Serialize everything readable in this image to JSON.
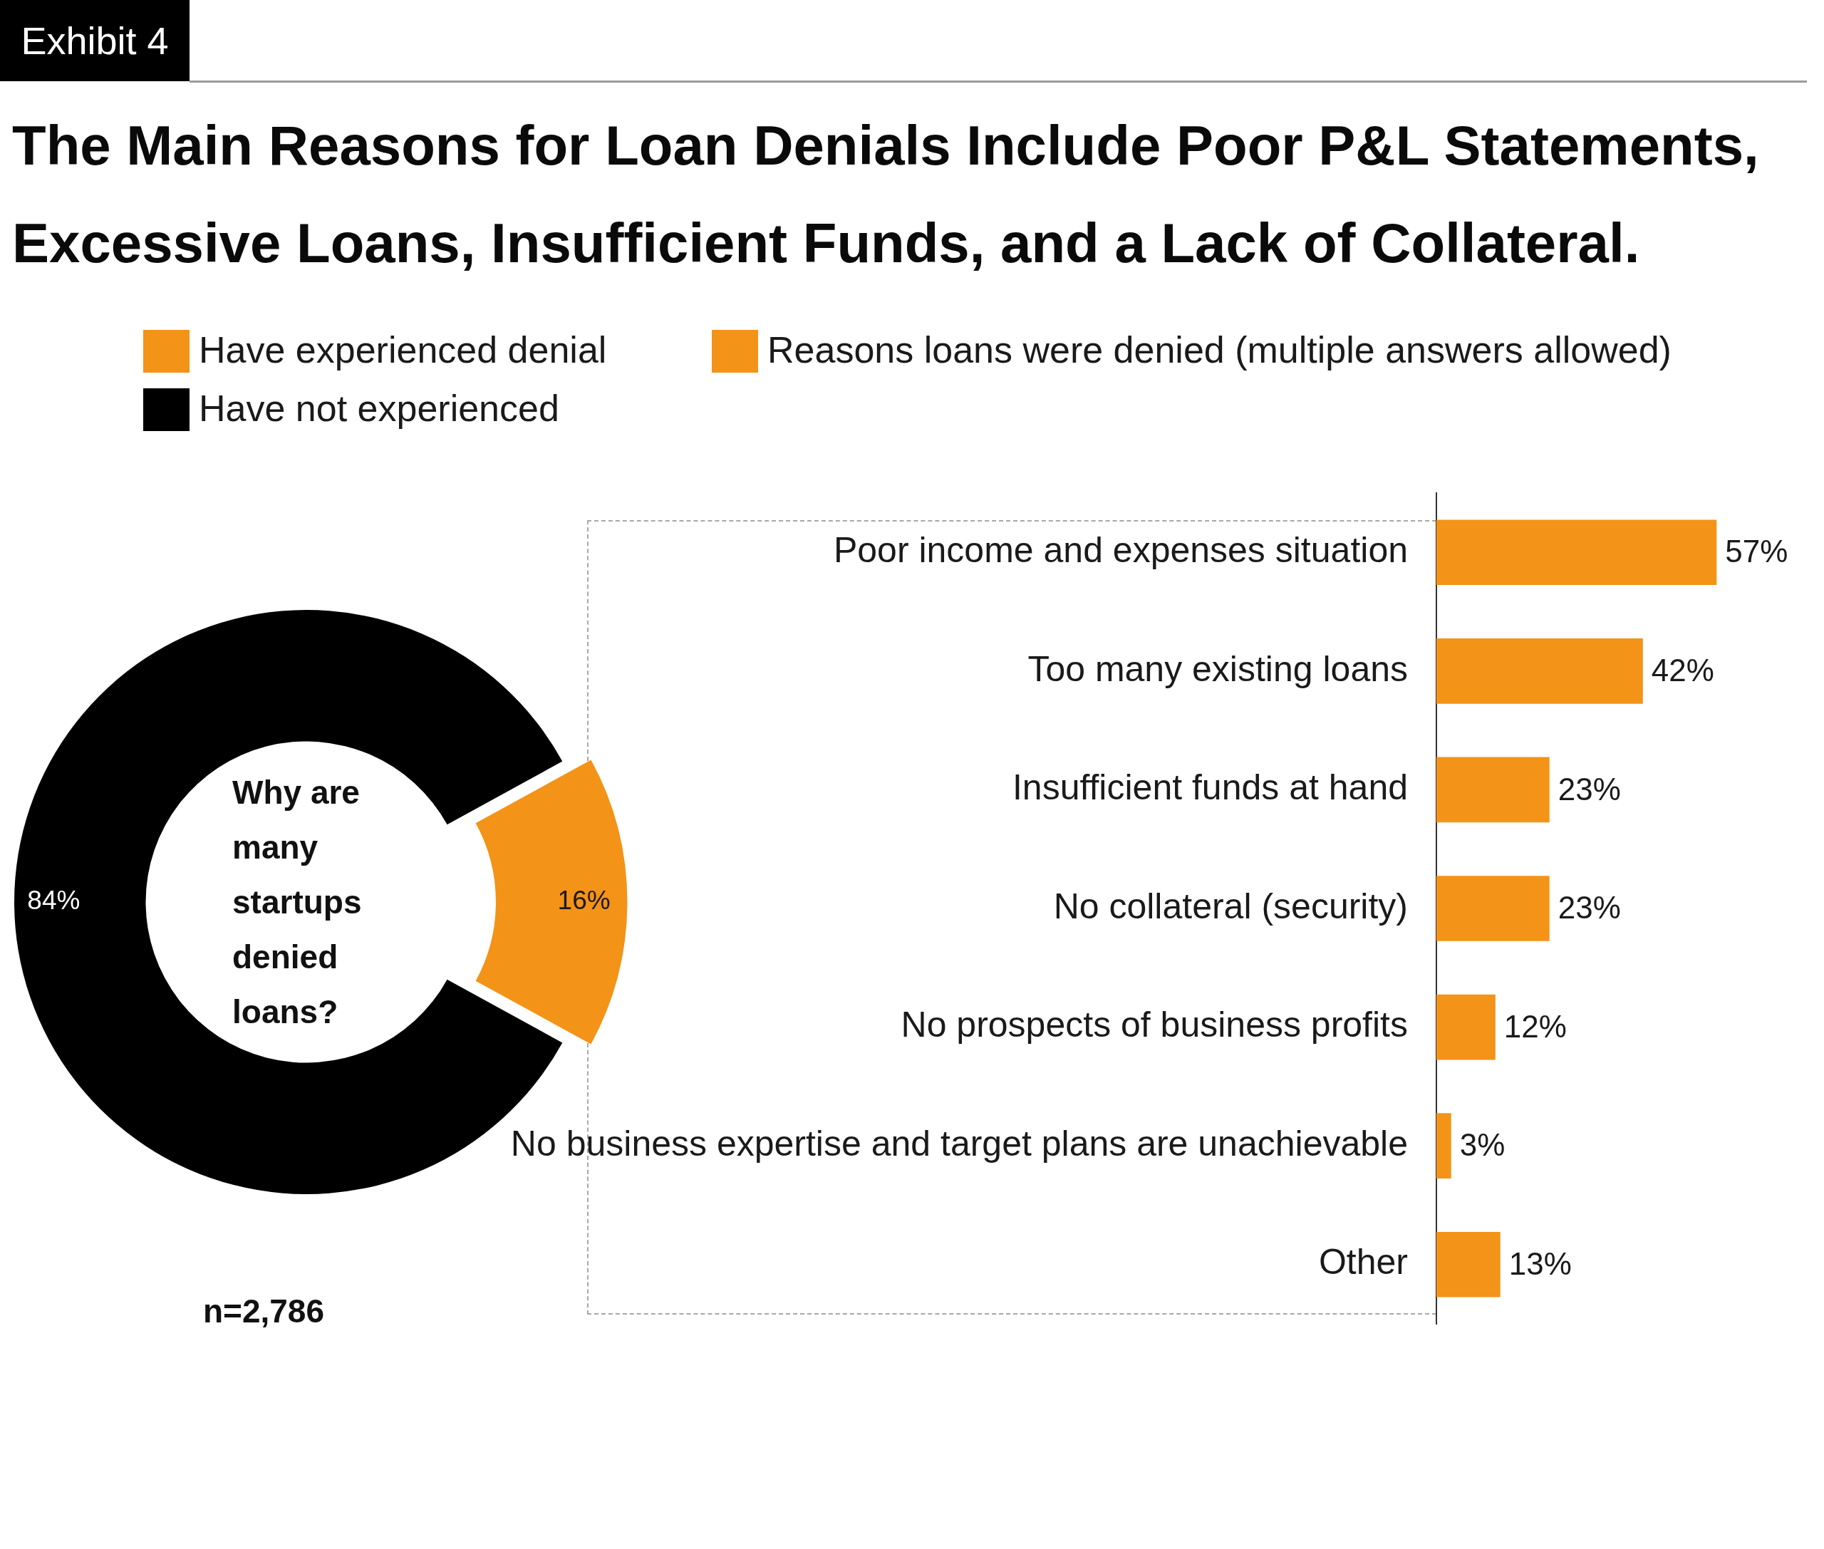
{
  "chart_data": [
    {
      "type": "donut",
      "title": "The Main Reasons for Loan Denials Include Poor P&L Statements, Excessive Loans, Insufficient Funds, and a Lack of Collateral.",
      "categories": [
        "Have experienced denial",
        "Have not experienced"
      ],
      "values": [
        16,
        84
      ],
      "colors": [
        "#f39318",
        "#000000"
      ],
      "value_labels": [
        "16%",
        "84%"
      ],
      "legend": "top",
      "annotations": [
        "Exhibit 4",
        "Why are many startups denied loans?",
        "n=2,786"
      ]
    },
    {
      "type": "bar",
      "orientation": "horizontal",
      "categories": [
        "Poor income and expenses situation",
        "Too many existing loans",
        "Insufficient funds at hand",
        "No collateral (security)",
        "No prospects of business profits",
        "No business expertise and target plans are unachievable",
        "Other"
      ],
      "series": [
        {
          "name": "Reasons loans were denied (multiple answers allowed)",
          "color": "#f39318",
          "values": [
            57,
            42,
            23,
            23,
            12,
            3,
            13
          ],
          "value_labels": [
            "57%",
            "42%",
            "23%",
            "23%",
            "12%",
            "3%",
            "13%"
          ]
        }
      ],
      "legend": "top"
    }
  ]
}
